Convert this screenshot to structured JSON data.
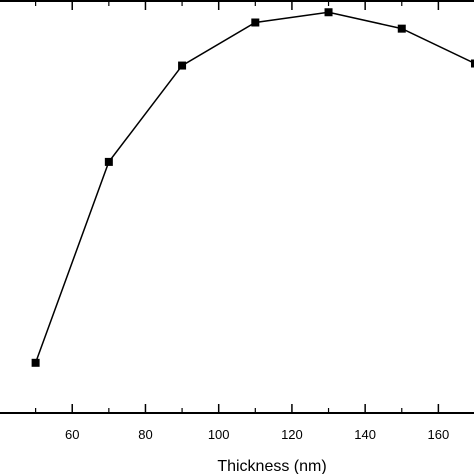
{
  "chart_data": {
    "type": "line",
    "title": "",
    "xlabel": "Thickness (nm)",
    "ylabel": "",
    "xlim": [
      40,
      170
    ],
    "x_ticks": [
      60,
      80,
      100,
      120,
      140,
      160
    ],
    "x_tick_labels": [
      "60",
      "80",
      "100",
      "120",
      "140",
      "160"
    ],
    "grid": false,
    "legend": "none",
    "marker": "square",
    "series": [
      {
        "x": [
          50,
          70,
          90,
          110,
          130,
          150,
          170
        ],
        "y": [
          0.12,
          0.61,
          0.845,
          0.95,
          0.975,
          0.935,
          0.85
        ]
      }
    ],
    "colors": {
      "line": "#000000",
      "marker": "#000000"
    }
  }
}
